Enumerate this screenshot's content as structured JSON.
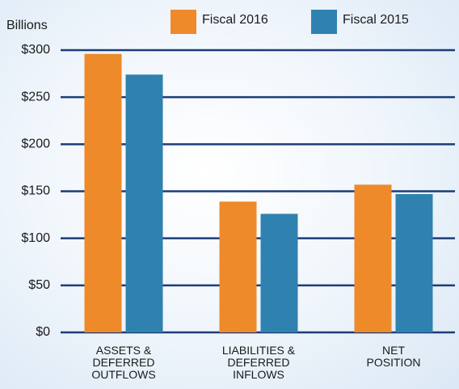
{
  "chart_data": {
    "type": "bar",
    "y_axis_label": "Billions",
    "categories": [
      "ASSETS &\nDEFERRED\nOUTFLOWS",
      "LIABILITIES &\nDEFERRED\nINFLOWS",
      "NET\nPOSITION"
    ],
    "series": [
      {
        "name": "Fiscal 2016",
        "color": "#ee8a2a",
        "values": [
          296,
          139,
          157
        ]
      },
      {
        "name": "Fiscal 2015",
        "color": "#2f81b0",
        "values": [
          274,
          126,
          147
        ]
      }
    ],
    "ylim": [
      0,
      300
    ],
    "yticks": [
      {
        "value": 0,
        "label": "$0"
      },
      {
        "value": 50,
        "label": "$50"
      },
      {
        "value": 100,
        "label": "$100"
      },
      {
        "value": 150,
        "label": "$150"
      },
      {
        "value": 200,
        "label": "$200"
      },
      {
        "value": 250,
        "label": "$250"
      },
      {
        "value": 300,
        "label": "$300"
      }
    ],
    "grid": true,
    "grid_color": "#1c3c78"
  }
}
